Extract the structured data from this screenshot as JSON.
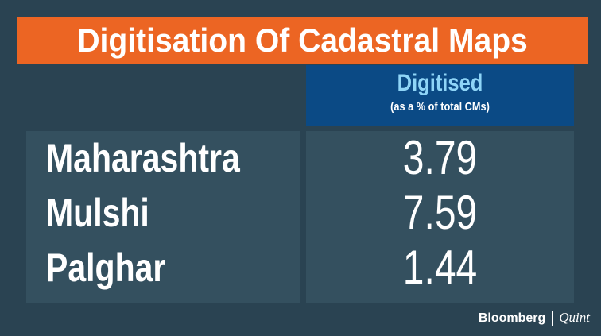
{
  "title": "Digitisation Of Cadastral Maps",
  "table": {
    "header": {
      "label": "Digitised",
      "sublabel": "(as a % of total CMs)"
    },
    "rows": [
      [
        "Maharashtra",
        3.79
      ],
      [
        "Mulshi",
        7.59
      ],
      [
        "Palghar",
        1.44
      ]
    ]
  },
  "footer": {
    "brand": "Bloomberg",
    "partner": "Quint"
  }
}
